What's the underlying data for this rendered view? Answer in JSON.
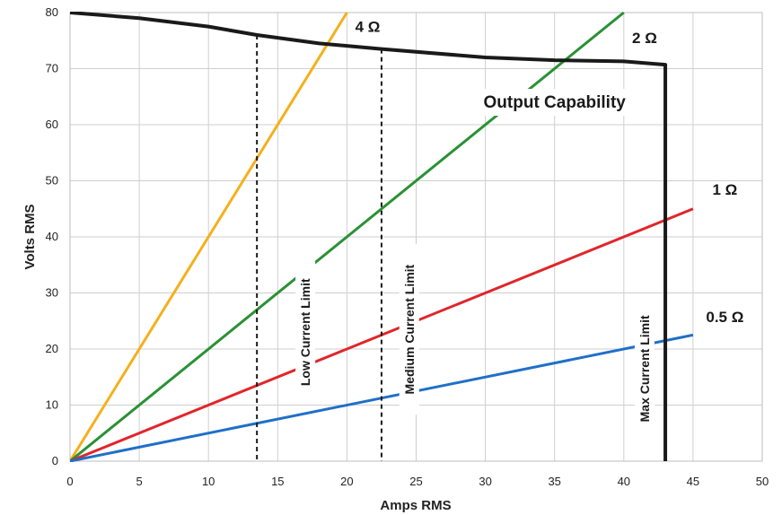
{
  "chart_data": {
    "type": "line",
    "title": "",
    "xlabel": "Amps RMS",
    "ylabel": "Volts RMS",
    "xlim": [
      0,
      50
    ],
    "ylim": [
      0,
      80
    ],
    "xticks": [
      0,
      5,
      10,
      15,
      20,
      25,
      30,
      35,
      40,
      45,
      50
    ],
    "yticks": [
      0,
      10,
      20,
      30,
      40,
      50,
      60,
      70,
      80
    ],
    "grid": true,
    "series": [
      {
        "name": "4 Ω",
        "color": "#f4b01c",
        "x": [
          0,
          20
        ],
        "y": [
          0,
          80
        ]
      },
      {
        "name": "2 Ω",
        "color": "#2a9134",
        "x": [
          0,
          40
        ],
        "y": [
          0,
          80
        ]
      },
      {
        "name": "1 Ω",
        "color": "#e0262b",
        "x": [
          0,
          45
        ],
        "y": [
          0,
          45
        ]
      },
      {
        "name": "0.5 Ω",
        "color": "#1f6fc9",
        "x": [
          0,
          45
        ],
        "y": [
          0,
          22.5
        ]
      },
      {
        "name": "Output Capability",
        "color": "#1a1a1a",
        "x": [
          0,
          5,
          10,
          13.5,
          18,
          22.5,
          30,
          35,
          40,
          43,
          43
        ],
        "y": [
          80,
          79,
          77.5,
          76,
          74.5,
          73.5,
          72,
          71.5,
          71.3,
          70.7,
          0
        ]
      }
    ],
    "vlines": [
      {
        "x": 13.5,
        "ymax": 76,
        "label": "Low Current Limit",
        "style": "dashed"
      },
      {
        "x": 22.5,
        "ymax": 73.5,
        "label": "Medium Current Limit",
        "style": "dashed"
      },
      {
        "x": 43,
        "ymax": 70.7,
        "label": "Max Current Limit",
        "style": "solid"
      }
    ],
    "annotations": [
      {
        "text": "4 Ω",
        "x": 21.5,
        "y": 77.5
      },
      {
        "text": "2 Ω",
        "x": 41.5,
        "y": 75.5
      },
      {
        "text": "1 Ω",
        "x": 47.3,
        "y": 48.5
      },
      {
        "text": "0.5 Ω",
        "x": 47.3,
        "y": 25.8
      },
      {
        "text": "Output Capability",
        "x": 35,
        "y": 64
      }
    ]
  }
}
